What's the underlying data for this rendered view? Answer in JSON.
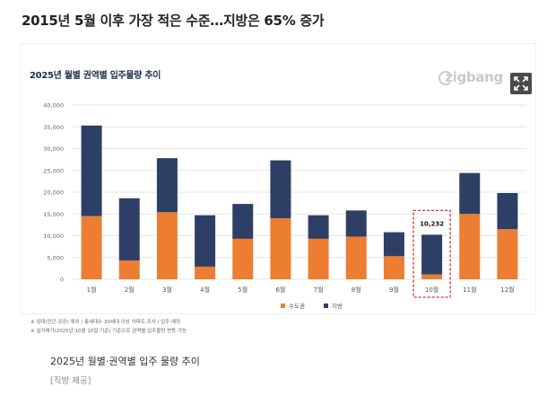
{
  "headline": "2015년 5월 이후 가장 적은 수준…지방은 65% 증가",
  "figure": {
    "chart_title": "2025년 월별 권역별 입주물량 추이",
    "brand": "zigbang",
    "expand_icon": "expand-icon"
  },
  "notes": [
    "※ 임대(민간·공공) 제외 / 총세대수 30세대 이상 아파트 조사 / 입주 예정",
    "※ 실거래가(2025년 10월 10일 기준) 기준으로 권역별 입주물량 변동 가능"
  ],
  "caption": "2025년 월별·권역별 입주 물량 추이",
  "credit": "[직방 제공]",
  "colors": {
    "capital": "#ed7d31",
    "provincial": "#2e3f66",
    "highlight": "#d9302a",
    "grid": "#e6e6e6"
  },
  "chart_data": {
    "type": "bar",
    "stacked": true,
    "title": "2025년 월별 권역별 입주물량 추이",
    "xlabel": "",
    "ylabel": "",
    "categories": [
      "1월",
      "2월",
      "3월",
      "4월",
      "5월",
      "6월",
      "7월",
      "8월",
      "9월",
      "10월",
      "11월",
      "12월"
    ],
    "series": [
      {
        "name": "수도권",
        "values": [
          14500,
          4300,
          15400,
          2900,
          9300,
          14000,
          9300,
          9800,
          5300,
          1100,
          15000,
          11500
        ]
      },
      {
        "name": "지방",
        "values": [
          20800,
          14300,
          12400,
          11800,
          8000,
          13300,
          5400,
          6000,
          5500,
          9132,
          9400,
          8300
        ]
      }
    ],
    "totals_label": {
      "category": "10월",
      "text": "10,232"
    },
    "ylim": [
      0,
      40000
    ],
    "yticks": [
      "0",
      "5,000",
      "10,000",
      "15,000",
      "20,000",
      "25,000",
      "30,000",
      "35,000",
      "40,000"
    ],
    "grid": true,
    "legend_position": "bottom"
  }
}
